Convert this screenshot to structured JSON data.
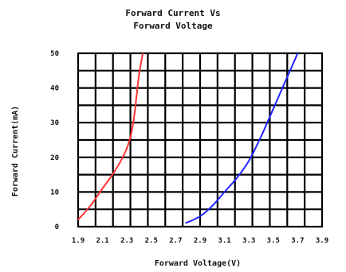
{
  "chart_data": {
    "type": "line",
    "title_line1": "Forward Current Vs",
    "title_line2": "Forward Voltage",
    "xlabel": "Forward Voltage(V)",
    "ylabel": "Forward Current(mA)",
    "xlim": [
      1.9,
      3.9
    ],
    "ylim": [
      0,
      50
    ],
    "x_ticks": [
      "1.9",
      "2.1",
      "2.3",
      "2.5",
      "2.7",
      "2.9",
      "3.1",
      "3.3",
      "3.5",
      "3.7",
      "3.9"
    ],
    "y_ticks": [
      "0",
      "10",
      "20",
      "30",
      "40",
      "50"
    ],
    "grid": true,
    "series": [
      {
        "color": "#ff3333",
        "points": [
          [
            1.9,
            2
          ],
          [
            2.0,
            6
          ],
          [
            2.1,
            11
          ],
          [
            2.2,
            16
          ],
          [
            2.28,
            21
          ],
          [
            2.33,
            26
          ],
          [
            2.36,
            32
          ],
          [
            2.38,
            38
          ],
          [
            2.4,
            44
          ],
          [
            2.43,
            50
          ]
        ]
      },
      {
        "color": "#2222ff",
        "points": [
          [
            2.78,
            1
          ],
          [
            2.9,
            3
          ],
          [
            3.0,
            6
          ],
          [
            3.1,
            10
          ],
          [
            3.2,
            14
          ],
          [
            3.3,
            19
          ],
          [
            3.4,
            26
          ],
          [
            3.5,
            34
          ],
          [
            3.6,
            42
          ],
          [
            3.7,
            50
          ]
        ]
      }
    ]
  }
}
